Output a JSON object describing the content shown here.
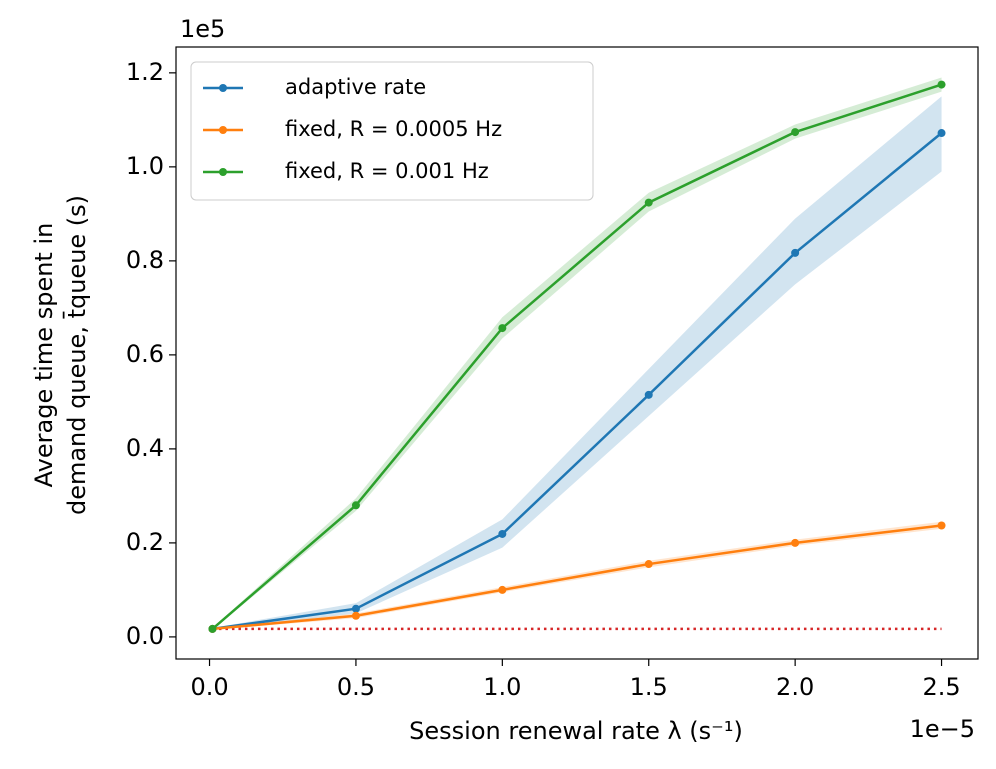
{
  "chart_data": {
    "type": "line",
    "ylabel": [
      "Average time spent in",
      "demand queue, t̄queue (s)"
    ],
    "xlabel": "Session renewal rate λ (s⁻¹)",
    "y_offset": "1e5",
    "x_offset": "1e−5",
    "x": [
      0.01,
      0.5,
      1.0,
      1.5,
      2.0,
      2.5
    ],
    "series": [
      {
        "name": "adaptive rate",
        "color": "#1f77b4",
        "values": [
          0.017,
          0.06,
          0.219,
          0.515,
          0.817,
          1.072
        ],
        "lower": [
          0.015,
          0.05,
          0.19,
          0.47,
          0.75,
          0.99
        ],
        "upper": [
          0.019,
          0.072,
          0.25,
          0.57,
          0.89,
          1.15
        ]
      },
      {
        "name": "fixed, R = 0.0005 Hz",
        "color": "#ff7f0e",
        "values": [
          0.017,
          0.045,
          0.1,
          0.155,
          0.2,
          0.237
        ],
        "lower": [
          0.015,
          0.04,
          0.095,
          0.148,
          0.194,
          0.23
        ],
        "upper": [
          0.019,
          0.05,
          0.106,
          0.162,
          0.207,
          0.245
        ]
      },
      {
        "name": "fixed, R = 0.001 Hz",
        "color": "#2ca02c",
        "values": [
          0.017,
          0.28,
          0.657,
          0.924,
          1.074,
          1.175
        ],
        "lower": [
          0.015,
          0.268,
          0.635,
          0.905,
          1.06,
          1.16
        ],
        "upper": [
          0.019,
          0.295,
          0.68,
          0.945,
          1.09,
          1.19
        ]
      }
    ],
    "reference": {
      "value": 0.017,
      "color": "#d62728"
    },
    "xlim": [
      -0.1145,
      2.6245
    ],
    "ylim": [
      -0.047,
      1.255
    ],
    "xticks": [
      {
        "value": 0,
        "label": "0.0"
      },
      {
        "value": 0.5,
        "label": "0.5"
      },
      {
        "value": 1,
        "label": "1.0"
      },
      {
        "value": 1.5,
        "label": "1.5"
      },
      {
        "value": 2,
        "label": "2.0"
      },
      {
        "value": 2.5,
        "label": "2.5"
      }
    ],
    "yticks": [
      {
        "value": 0,
        "label": "0.0"
      },
      {
        "value": 0.2,
        "label": "0.2"
      },
      {
        "value": 0.4,
        "label": "0.4"
      },
      {
        "value": 0.6,
        "label": "0.6"
      },
      {
        "value": 0.8,
        "label": "0.8"
      },
      {
        "value": 1.0,
        "label": "1.0"
      },
      {
        "value": 1.2,
        "label": "1.2"
      }
    ],
    "legend": "upper left"
  }
}
